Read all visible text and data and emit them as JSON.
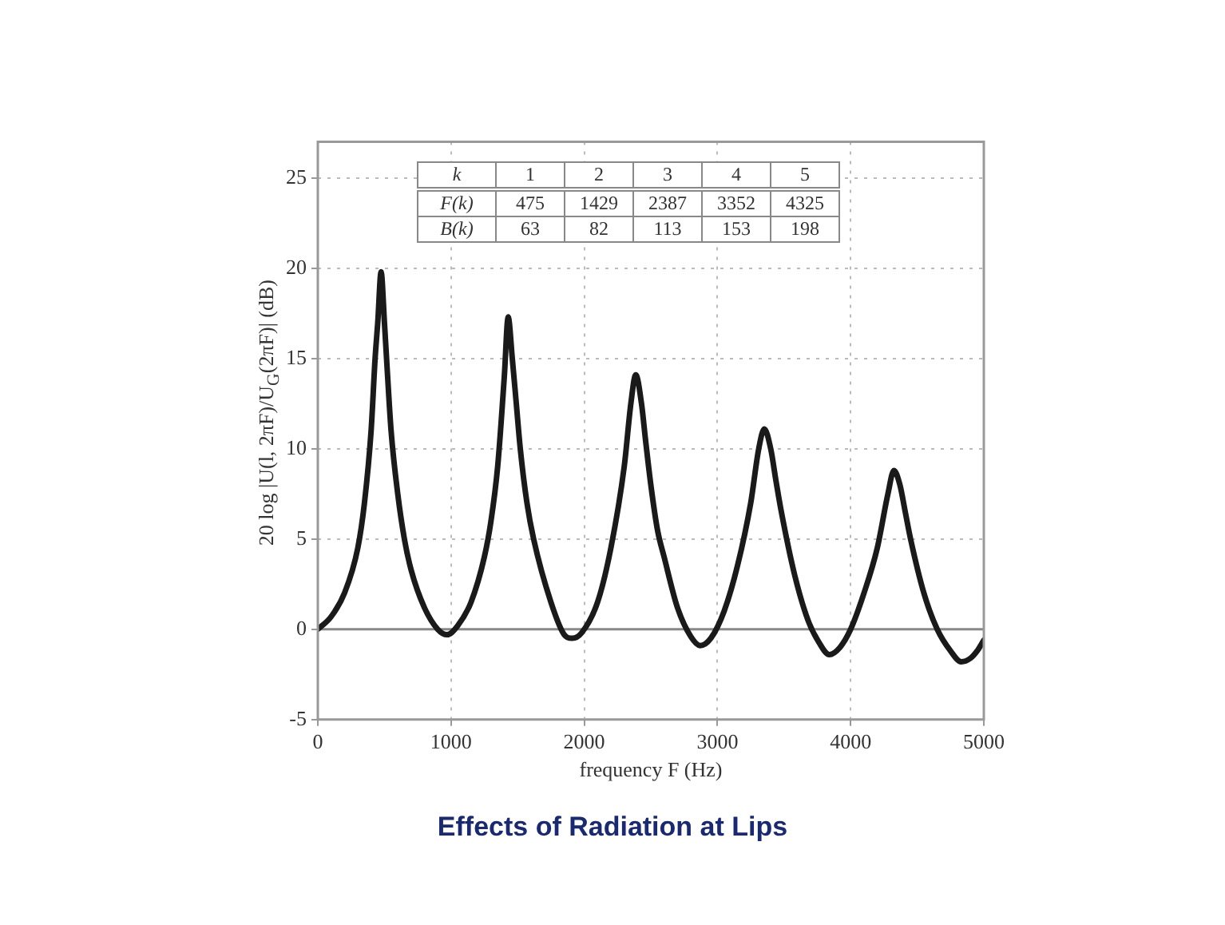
{
  "chart_data": {
    "type": "line",
    "title": "Effects of Radiation at Lips",
    "xlabel": "frequency F (Hz)",
    "ylabel": "20 log |U(l, 2πF)/U$_{G}$(2πF)| (dB)",
    "annotations": [
      "k 1 2 3 4 5",
      "F(k) 475 1429 2387 3352 4325",
      "B(k) 63 82 113 153 198"
    ],
    "series": [
      {
        "color": "#1a1a1a",
        "x": [
          0,
          100,
          200,
          300,
          350,
          400,
          430,
          450,
          475,
          500,
          520,
          550,
          600,
          650,
          700,
          800,
          900,
          970,
          1050,
          1150,
          1250,
          1300,
          1350,
          1400,
          1429,
          1460,
          1490,
          1520,
          1570,
          1620,
          1750,
          1850,
          1910,
          1980,
          2100,
          2200,
          2300,
          2350,
          2387,
          2430,
          2460,
          2500,
          2550,
          2600,
          2700,
          2800,
          2870,
          2950,
          3050,
          3150,
          3250,
          3310,
          3352,
          3400,
          3440,
          3480,
          3580,
          3680,
          3760,
          3840,
          3920,
          4000,
          4100,
          4200,
          4280,
          4325,
          4370,
          4410,
          4450,
          4550,
          4650,
          4750,
          4830,
          4900,
          4950,
          5000
        ],
        "values": [
          0,
          0.7,
          2,
          4.5,
          7,
          11,
          15,
          17,
          19.8,
          17,
          14.5,
          11,
          7.5,
          5,
          3.3,
          1.2,
          0,
          -0.3,
          0.2,
          1.5,
          4,
          6,
          9,
          14,
          17.3,
          15,
          12.5,
          10,
          7,
          5,
          1.5,
          -0.3,
          -0.5,
          -0.2,
          1.5,
          4.5,
          9,
          12.5,
          14.1,
          12.5,
          10.5,
          8,
          5.5,
          4,
          1.2,
          -0.4,
          -0.9,
          -0.5,
          1,
          3.5,
          7,
          10,
          11.1,
          10,
          8.2,
          6.5,
          3,
          0.5,
          -0.7,
          -1.4,
          -1,
          0,
          2,
          4.5,
          7.5,
          8.8,
          8,
          6.5,
          5,
          2,
          0,
          -1.2,
          -1.8,
          -1.6,
          -1.2,
          -0.6
        ]
      }
    ],
    "xlim": [
      0,
      5000
    ],
    "xticks": [
      0,
      1000,
      2000,
      3000,
      4000,
      5000
    ],
    "ylim": [
      -5,
      27
    ],
    "yticks": [
      -5,
      0,
      5,
      10,
      15,
      20,
      25
    ],
    "grid": true,
    "line_style": "solid",
    "marker": "none",
    "ref_lines": [
      {
        "axis": "y",
        "value": 0,
        "color": "#888888"
      }
    ]
  }
}
